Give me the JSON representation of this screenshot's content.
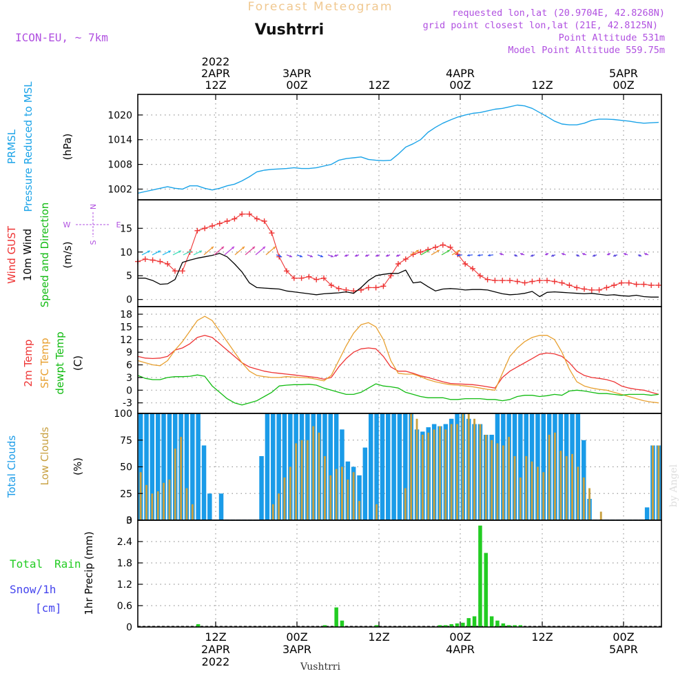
{
  "header": {
    "product": "Forecast Meteogram",
    "location": "Vushtrri",
    "model": "ICON-EU, ~ 7km",
    "requested": "requested lon,lat (20.9704E, 42.8268N)",
    "grid_point": "grid point closest lon,lat (21E, 42.8125N)",
    "point_alt": "Point Altitude 531m",
    "model_alt": "Model Point Altitude 559.75m",
    "footer_name": "Vushtrri",
    "watermark": "by Angel"
  },
  "time_axis": {
    "top_labels": [
      {
        "lines": [
          "2022",
          "2APR",
          "12Z"
        ]
      },
      {
        "lines": [
          "3APR",
          "00Z"
        ]
      },
      {
        "lines": [
          "12Z"
        ]
      },
      {
        "lines": [
          "4APR",
          "00Z"
        ]
      },
      {
        "lines": [
          "12Z"
        ]
      },
      {
        "lines": [
          "5APR",
          "00Z"
        ]
      }
    ],
    "bottom_labels": [
      {
        "lines": [
          "12Z",
          "2APR",
          "2022"
        ]
      },
      {
        "lines": [
          "00Z",
          "3APR"
        ]
      },
      {
        "lines": [
          "12Z"
        ]
      },
      {
        "lines": [
          "00Z",
          "4APR"
        ]
      },
      {
        "lines": [
          "12Z"
        ]
      },
      {
        "lines": [
          "00Z",
          "5APR"
        ]
      }
    ]
  },
  "panels": {
    "pressure": {
      "lines": [
        "PRMSL",
        "Pressure Reduced to MSL"
      ],
      "unit": "(hPa)",
      "ticks": [
        "1002",
        "1008",
        "1014",
        "1020"
      ]
    },
    "wind": {
      "lines": [
        "Wind GUST",
        "10m Wind",
        "Speed and Direction"
      ],
      "unit": "(m/s)",
      "ticks": [
        "0",
        "5",
        "10",
        "15"
      ],
      "compass": {
        "n": "N",
        "s": "S",
        "w": "W",
        "e": "E"
      }
    },
    "temp": {
      "lines": [
        "2m Temp",
        "SFC Temp",
        "dewpt Temp"
      ],
      "unit": "(C)",
      "ticks": [
        "-3",
        "0",
        "3",
        "6",
        "9",
        "12",
        "15",
        "18"
      ]
    },
    "clouds": {
      "lines": [
        "Total Clouds",
        "Low Clouds"
      ],
      "unit": "(%)",
      "ticks": [
        "0",
        "25",
        "50",
        "75",
        "100"
      ]
    },
    "precip": {
      "left": [
        "Total",
        "Rain",
        "Snow/1h",
        "[cm]"
      ],
      "unit": "1hr Precip (mm)",
      "ticks": [
        "0",
        "0.6",
        "1.2",
        "1.8",
        "2.4",
        "3"
      ]
    }
  },
  "chart_data": [
    {
      "type": "line",
      "series": [
        {
          "name": "PRMSL",
          "color": "#1aa3e8",
          "values": [
            1001.0,
            1001.4,
            1001.8,
            1002.2,
            1002.6,
            1002.2,
            1002.0,
            1002.8,
            1002.8,
            1002.2,
            1001.8,
            1002.2,
            1002.8,
            1003.2,
            1004.0,
            1005.0,
            1006.2,
            1006.6,
            1006.8,
            1006.9,
            1007.0,
            1007.2,
            1007.0,
            1007.0,
            1007.2,
            1007.6,
            1008.0,
            1009.0,
            1009.4,
            1009.6,
            1009.8,
            1009.2,
            1009.0,
            1008.9,
            1009.0,
            1010.5,
            1012.2,
            1013.0,
            1014.0,
            1015.8,
            1017.0,
            1018.0,
            1018.8,
            1019.5,
            1020.0,
            1020.4,
            1020.6,
            1021.0,
            1021.4,
            1021.6,
            1022.0,
            1022.4,
            1022.2,
            1021.6,
            1020.6,
            1019.6,
            1018.5,
            1017.8,
            1017.6,
            1017.6,
            1018.0,
            1018.7,
            1019.0,
            1019.0,
            1018.9,
            1018.7,
            1018.5,
            1018.2,
            1018.0,
            1018.1,
            1018.2
          ]
        }
      ],
      "xlabel": "",
      "ylabel": "(hPa)",
      "ylim": [
        999.4,
        1025.0
      ],
      "grid": true
    },
    {
      "type": "line",
      "series": [
        {
          "name": "Wind GUST",
          "color": "#ee3333",
          "values": [
            8.0,
            8.5,
            8.3,
            8.0,
            7.5,
            6.0,
            6.0,
            10.0,
            14.5,
            15.0,
            15.5,
            16.0,
            16.5,
            17.0,
            18.0,
            18.0,
            17.0,
            16.5,
            14.0,
            9.0,
            6.0,
            4.5,
            4.5,
            4.8,
            4.2,
            4.5,
            3.0,
            2.3,
            2.0,
            1.8,
            2.0,
            2.5,
            2.5,
            2.8,
            5.0,
            7.5,
            8.5,
            9.5,
            10.0,
            10.5,
            11.0,
            11.5,
            11.0,
            9.5,
            7.5,
            6.5,
            5.0,
            4.2,
            4.0,
            4.0,
            4.0,
            3.8,
            3.5,
            3.8,
            4.0,
            4.0,
            3.8,
            3.5,
            3.0,
            2.5,
            2.2,
            2.0,
            2.0,
            2.5,
            3.0,
            3.5,
            3.5,
            3.2,
            3.2,
            3.0,
            3.0
          ]
        },
        {
          "name": "10m Wind",
          "color": "#000000",
          "values": [
            4.5,
            4.5,
            4.0,
            3.2,
            3.3,
            4.2,
            7.8,
            8.3,
            8.7,
            9.0,
            9.3,
            9.7,
            9.0,
            7.5,
            5.8,
            3.5,
            2.5,
            2.4,
            2.3,
            2.2,
            1.8,
            1.6,
            1.4,
            1.2,
            1.0,
            1.2,
            1.3,
            1.4,
            1.6,
            1.3,
            2.5,
            4.0,
            5.0,
            5.3,
            5.5,
            5.5,
            6.2,
            3.5,
            3.7,
            2.7,
            1.8,
            2.2,
            2.3,
            2.2,
            2.0,
            2.1,
            2.1,
            2.0,
            1.6,
            1.2,
            1.0,
            1.1,
            1.3,
            1.7,
            0.6,
            1.5,
            1.6,
            1.5,
            1.4,
            1.3,
            1.2,
            1.3,
            1.1,
            0.9,
            1.0,
            0.8,
            0.7,
            0.9,
            0.6,
            0.5,
            0.5
          ]
        }
      ],
      "xlabel": "",
      "ylabel": "(m/s)",
      "ylim": [
        -1.5,
        21.0
      ],
      "grid": true
    },
    {
      "type": "line",
      "series": [
        {
          "name": "2m Temp",
          "color": "#ee3333",
          "values": [
            8.0,
            7.6,
            7.5,
            7.6,
            8.0,
            9.5,
            10.0,
            11.0,
            12.5,
            13.0,
            12.5,
            11.0,
            9.5,
            8.0,
            6.5,
            5.5,
            5.0,
            4.5,
            4.2,
            4.0,
            3.8,
            3.6,
            3.4,
            3.2,
            3.0,
            2.6,
            3.0,
            5.5,
            7.5,
            9.0,
            9.8,
            10.0,
            9.8,
            8.0,
            5.5,
            4.5,
            4.5,
            4.0,
            3.4,
            3.0,
            2.5,
            2.0,
            1.6,
            1.5,
            1.4,
            1.3,
            1.1,
            0.8,
            0.5,
            3.0,
            4.5,
            5.5,
            6.5,
            7.5,
            8.5,
            8.8,
            8.6,
            8.0,
            6.5,
            4.5,
            3.5,
            3.0,
            2.8,
            2.5,
            2.0,
            1.0,
            0.5,
            0.2,
            0.0,
            -0.5,
            -1.0
          ]
        },
        {
          "name": "SFC Temp",
          "color": "#e8a030",
          "values": [
            7.0,
            6.5,
            6.0,
            5.8,
            7.0,
            9.5,
            11.5,
            14.0,
            16.5,
            17.5,
            16.5,
            14.0,
            11.5,
            9.0,
            6.5,
            4.5,
            3.5,
            3.2,
            3.0,
            3.0,
            3.2,
            3.1,
            3.0,
            2.9,
            2.6,
            2.2,
            3.5,
            7.0,
            10.5,
            13.5,
            15.5,
            16.0,
            15.0,
            12.0,
            7.0,
            4.0,
            3.8,
            3.8,
            3.2,
            2.5,
            2.0,
            1.6,
            1.3,
            1.2,
            1.0,
            0.8,
            0.5,
            0.2,
            0.0,
            4.0,
            8.0,
            10.0,
            11.5,
            12.5,
            13.0,
            13.0,
            12.0,
            9.0,
            5.0,
            2.0,
            1.0,
            0.5,
            0.2,
            0.0,
            -0.5,
            -1.0,
            -1.5,
            -2.0,
            -2.5,
            -2.8,
            -3.0
          ]
        },
        {
          "name": "dewpt Temp",
          "color": "#11bb11",
          "values": [
            3.5,
            2.8,
            2.5,
            2.5,
            3.0,
            3.2,
            3.2,
            3.3,
            3.6,
            3.3,
            1.0,
            -0.5,
            -2.0,
            -3.0,
            -3.5,
            -3.0,
            -2.5,
            -1.5,
            -0.5,
            1.0,
            1.2,
            1.3,
            1.3,
            1.4,
            1.2,
            0.5,
            0.0,
            -0.5,
            -1.0,
            -1.0,
            -0.5,
            0.5,
            1.5,
            1.0,
            0.8,
            0.5,
            -0.5,
            -1.0,
            -1.5,
            -1.8,
            -1.8,
            -1.8,
            -2.2,
            -2.2,
            -2.0,
            -2.0,
            -2.0,
            -2.2,
            -2.2,
            -2.5,
            -2.2,
            -1.5,
            -1.2,
            -1.2,
            -1.5,
            -1.3,
            -1.0,
            -1.2,
            -0.2,
            0.0,
            -0.2,
            -0.5,
            -0.8,
            -0.8,
            -1.0,
            -1.2,
            -1.0,
            -1.0,
            -1.0,
            -1.2,
            -1.0
          ]
        }
      ],
      "xlabel": "",
      "ylabel": "(C)",
      "ylim": [
        -5.5,
        19.8
      ],
      "grid": true
    },
    {
      "type": "bar",
      "series": [
        {
          "name": "Total Clouds",
          "color": "#1a9be8",
          "values": [
            100,
            100,
            100,
            100,
            100,
            100,
            100,
            100,
            100,
            100,
            100,
            70,
            25,
            0,
            25,
            0,
            0,
            0,
            0,
            0,
            0,
            60,
            100,
            100,
            100,
            100,
            100,
            100,
            100,
            100,
            100,
            100,
            100,
            100,
            100,
            85,
            55,
            50,
            42,
            68,
            100,
            100,
            100,
            100,
            100,
            100,
            100,
            100,
            85,
            83,
            87,
            90,
            88,
            90,
            95,
            100,
            100,
            95,
            90,
            90,
            80,
            80,
            100,
            100,
            100,
            100,
            100,
            100,
            100,
            100,
            100,
            100,
            100,
            100,
            100,
            100,
            100,
            75,
            20,
            0,
            0,
            0,
            0,
            0,
            0,
            0,
            0,
            0,
            12,
            70,
            70
          ]
        },
        {
          "name": "Low Clouds",
          "color": "#c8a040",
          "values": [
            45,
            33,
            25,
            27,
            35,
            38,
            67,
            78,
            30,
            15,
            0,
            0,
            0,
            0,
            0,
            0,
            0,
            0,
            0,
            0,
            0,
            0,
            0,
            15,
            25,
            40,
            50,
            72,
            75,
            75,
            88,
            82,
            60,
            42,
            48,
            50,
            38,
            45,
            18,
            0,
            0,
            15,
            0,
            0,
            0,
            0,
            30,
            100,
            95,
            80,
            82,
            85,
            88,
            85,
            90,
            90,
            100,
            100,
            95,
            90,
            80,
            75,
            72,
            70,
            78,
            60,
            40,
            60,
            55,
            50,
            45,
            80,
            82,
            65,
            60,
            62,
            50,
            40,
            30,
            0,
            8,
            0,
            0,
            0,
            0,
            0,
            0,
            0,
            0,
            70,
            70
          ]
        }
      ],
      "xlabel": "",
      "ylabel": "(%)",
      "ylim": [
        0,
        100
      ],
      "grid": true
    },
    {
      "type": "bar",
      "series": [
        {
          "name": "1hr Precip",
          "color": "#22cc22",
          "values": [
            0,
            0,
            0,
            0,
            0,
            0,
            0,
            0,
            0,
            0,
            0.08,
            0,
            0,
            0,
            0,
            0,
            0,
            0,
            0,
            0,
            0,
            0,
            0,
            0,
            0,
            0,
            0,
            0,
            0,
            0,
            0,
            0,
            0.05,
            0,
            0.55,
            0.18,
            0,
            0,
            0,
            0,
            0,
            0.05,
            0,
            0,
            0,
            0,
            0,
            0,
            0,
            0,
            0,
            0,
            0.05,
            0.05,
            0.08,
            0.1,
            0.12,
            0.25,
            0.3,
            2.85,
            2.08,
            0.3,
            0.18,
            0.1,
            0.05,
            0.05,
            0.05,
            0,
            0,
            0,
            0,
            0,
            0,
            0,
            0,
            0,
            0,
            0,
            0,
            0,
            0,
            0,
            0,
            0,
            0,
            0,
            0,
            0,
            0,
            0,
            0
          ]
        }
      ],
      "xlabel": "",
      "ylabel": "1hr Precip (mm)",
      "ylim": [
        0,
        3
      ],
      "grid": true
    }
  ],
  "colors": {
    "title_orange": "#f0c890",
    "info_purple": "#b050e0",
    "pressure_blue": "#1aa3e8",
    "gust_red": "#ee3333",
    "sfc_orange": "#e8a030",
    "dew_green": "#11bb11",
    "cloud_blue": "#1a9be8",
    "lowcloud": "#c8a040",
    "rain_green": "#22cc22",
    "snow_blue": "#4444ee"
  }
}
